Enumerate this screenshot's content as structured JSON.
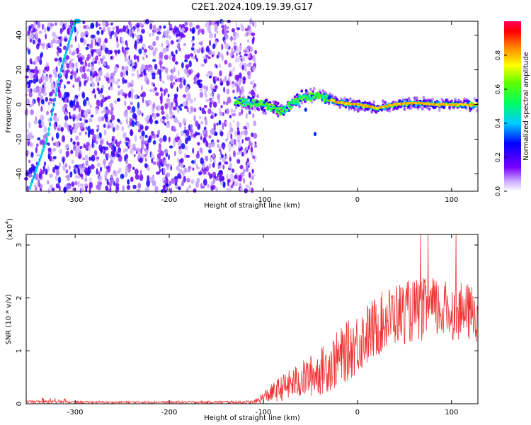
{
  "title": "C2E1.2024.109.19.39.G17",
  "chart_data": [
    {
      "type": "heatmap",
      "xlabel": "Height of straight line (km)",
      "ylabel": "Frequency (Hz)",
      "xlim": [
        -352,
        128
      ],
      "ylim": [
        -50,
        48
      ],
      "xticks": [
        -300,
        -200,
        -100,
        0,
        100
      ],
      "yticks": [
        -40,
        -20,
        0,
        20,
        40
      ],
      "colorbar": {
        "label": "Normalized spectral amplitude",
        "range": [
          0.0,
          1.0
        ],
        "ticks": [
          "0.0",
          "0.2",
          "0.4",
          "0.6",
          "0.8"
        ],
        "colormap": "rainbow",
        "low_color": "#ffffff",
        "mid_low_color": "#7b00ff",
        "mid_color": "#00ff80",
        "high_color": "#ff0050"
      },
      "features": [
        {
          "name": "broadband-noise",
          "x_range": [
            -352,
            -108
          ],
          "y_range": [
            -50,
            48
          ],
          "amplitude": [
            0.05,
            0.3
          ]
        },
        {
          "name": "diagonal-streak",
          "x": [
            -348,
            -330,
            -315,
            -300,
            -295
          ],
          "y": [
            -48,
            -20,
            20,
            48,
            48
          ],
          "amplitude": 0.35
        },
        {
          "name": "carrier-tone",
          "x": [
            -130,
            -100,
            -80,
            -60,
            -40,
            -20,
            0,
            20,
            40,
            60,
            80,
            100,
            128
          ],
          "y": [
            2,
            0,
            -4,
            4,
            5,
            1,
            0,
            -2,
            0,
            1,
            0,
            0,
            0
          ],
          "amplitude": [
            0.4,
            0.85
          ]
        }
      ]
    },
    {
      "type": "line",
      "xlabel": "Height of straight line (km)",
      "ylabel": "SNR (10 * v/v)",
      "yscale_label": "(x10",
      "yscale_exp": "4",
      "yscale_close": ")",
      "xlim": [
        -352,
        128
      ],
      "ylim": [
        0,
        3.2
      ],
      "xticks": [
        -300,
        -200,
        -100,
        0,
        100
      ],
      "yticks": [
        0,
        1,
        2,
        3
      ],
      "color": "#ee3333",
      "x": [
        -352,
        -300,
        -200,
        -110,
        -100,
        -80,
        -60,
        -40,
        -20,
        0,
        20,
        40,
        60,
        80,
        100,
        128
      ],
      "y_mean": [
        0.04,
        0.03,
        0.03,
        0.03,
        0.12,
        0.3,
        0.45,
        0.6,
        0.85,
        1.15,
        1.45,
        1.7,
        1.75,
        1.8,
        1.75,
        1.7
      ],
      "y_spread": [
        0.03,
        0.02,
        0.02,
        0.03,
        0.12,
        0.25,
        0.35,
        0.45,
        0.55,
        0.6,
        0.6,
        0.6,
        0.6,
        0.6,
        0.55,
        0.55
      ],
      "y_peak": 3.3
    }
  ]
}
